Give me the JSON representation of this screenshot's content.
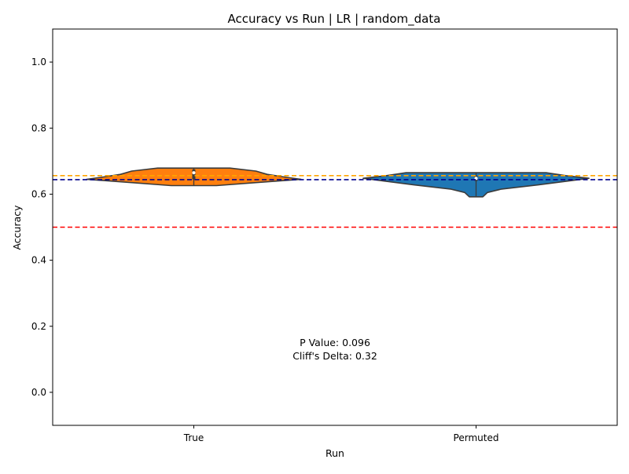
{
  "chart_data": {
    "type": "violin",
    "title": "Accuracy vs Run | LR | random_data",
    "xlabel": "Run",
    "ylabel": "Accuracy",
    "ylim": [
      -0.1,
      1.1
    ],
    "yticks": [
      "0.0",
      "0.2",
      "0.4",
      "0.6",
      "0.8",
      "1.0"
    ],
    "categories": [
      "True",
      "Permuted"
    ],
    "grid": false,
    "violins": [
      {
        "category": "True",
        "color": "#ff7f0e",
        "min": 0.626,
        "max": 0.679,
        "median": 0.665,
        "q1": 0.645,
        "q3": 0.675,
        "profile": [
          [
            0.626,
            0.2
          ],
          [
            0.635,
            0.55
          ],
          [
            0.645,
            0.95
          ],
          [
            0.652,
            0.8
          ],
          [
            0.66,
            0.65
          ],
          [
            0.67,
            0.55
          ],
          [
            0.679,
            0.32
          ]
        ]
      },
      {
        "category": "Permuted",
        "color": "#1f77b4",
        "min": 0.592,
        "max": 0.665,
        "median": 0.648,
        "q1": 0.64,
        "q3": 0.655,
        "profile": [
          [
            0.592,
            0.06
          ],
          [
            0.605,
            0.1
          ],
          [
            0.615,
            0.22
          ],
          [
            0.628,
            0.55
          ],
          [
            0.64,
            0.82
          ],
          [
            0.648,
            1.0
          ],
          [
            0.656,
            0.8
          ],
          [
            0.665,
            0.62
          ]
        ]
      }
    ],
    "reference_lines": [
      {
        "value": 0.656,
        "color": "#ffa500"
      },
      {
        "value": 0.644,
        "color": "#00008b"
      },
      {
        "value": 0.5,
        "color": "#ff0000"
      }
    ],
    "annotations": [
      "P Value: 0.096",
      "Cliff's Delta: 0.32"
    ]
  }
}
